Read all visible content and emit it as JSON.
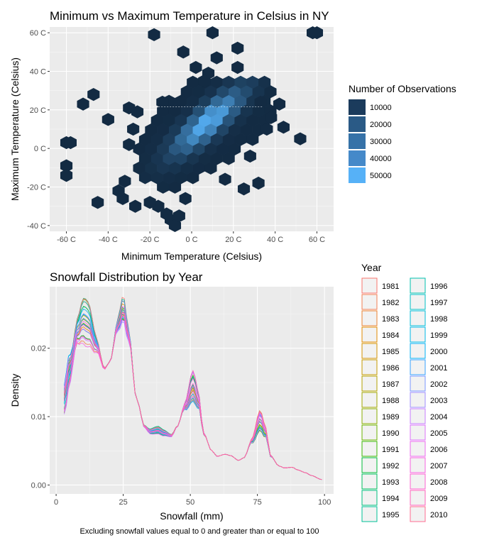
{
  "chart_data": [
    {
      "type": "heatmap",
      "subtype": "hexbin",
      "title": "Minimum vs Maximum Temperature in Celsius in NY",
      "xlabel": "Minimum Temperature (Celsius)",
      "ylabel": "Maximum Temperature (Celsius)",
      "xlim": [
        -68,
        68
      ],
      "ylim": [
        -43,
        63
      ],
      "x_ticks": [
        -60,
        -40,
        -20,
        0,
        20,
        40,
        60
      ],
      "x_tick_labels": [
        "-60 C",
        "-40 C",
        "-20 C",
        "0 C",
        "20 C",
        "40 C",
        "60 C"
      ],
      "y_ticks": [
        -40,
        -20,
        0,
        20,
        40,
        60
      ],
      "y_tick_labels": [
        "-40 C",
        "-20 C",
        "0 C",
        "20 C",
        "40 C",
        "60 C"
      ],
      "grid": true,
      "legend": {
        "title": "Number of Observations",
        "position": "right",
        "entries": [
          "10000",
          "20000",
          "30000",
          "40000",
          "50000"
        ],
        "values": [
          10000,
          20000,
          30000,
          40000,
          50000
        ],
        "colors": [
          "#1b3b5c",
          "#2a5a86",
          "#3672a8",
          "#4589c9",
          "#56b1f7"
        ]
      },
      "color_scale": {
        "low": "#132b43",
        "high": "#56b1f7"
      },
      "density_model": {
        "center": [
          8,
          14
        ],
        "major_axis_slope": 1,
        "sd_along": 14,
        "sd_across": 4.2,
        "max_count": 52000
      },
      "outlier_points": [
        [
          -60,
          3
        ],
        [
          -60,
          -9
        ],
        [
          -60,
          -14
        ],
        [
          -52,
          23
        ],
        [
          -47,
          28
        ],
        [
          -45,
          -28
        ],
        [
          -40,
          15
        ],
        [
          -33,
          -26
        ],
        [
          -28,
          10
        ],
        [
          -27,
          -30
        ],
        [
          -16,
          -30
        ],
        [
          -12,
          -34
        ],
        [
          -10,
          -37
        ],
        [
          -8,
          -40
        ],
        [
          -6,
          -35
        ],
        [
          -3,
          -26
        ],
        [
          -30,
          21
        ],
        [
          -18,
          59
        ],
        [
          10,
          60
        ],
        [
          22,
          52
        ],
        [
          22,
          42
        ],
        [
          8,
          39
        ],
        [
          6,
          35
        ],
        [
          2,
          42
        ],
        [
          12,
          47
        ],
        [
          36,
          10
        ],
        [
          42,
          23
        ],
        [
          44,
          11
        ],
        [
          60,
          60
        ],
        [
          58,
          60
        ],
        [
          -58,
          3
        ],
        [
          -4,
          50
        ],
        [
          33,
          24
        ],
        [
          38,
          16
        ],
        [
          -30,
          2
        ],
        [
          -26,
          19
        ],
        [
          28,
          -4
        ],
        [
          25,
          -21
        ],
        [
          32,
          -18
        ],
        [
          52,
          5
        ],
        [
          -35,
          -22
        ],
        [
          -32,
          -17
        ],
        [
          -20,
          -28
        ],
        [
          16,
          -16
        ],
        [
          -14,
          24
        ]
      ]
    },
    {
      "type": "line",
      "subtype": "density",
      "title": "Snowfall Distribution by Year",
      "xlabel": "Snowfall (mm)",
      "ylabel": "Density",
      "caption": "Excluding snowfall values equal to 0 and greater than or equal to 100",
      "xlim": [
        0,
        100
      ],
      "ylim": [
        0,
        0.029
      ],
      "x_ticks": [
        0,
        25,
        50,
        75,
        100
      ],
      "x_tick_labels": [
        "0",
        "25",
        "50",
        "75",
        "100"
      ],
      "y_ticks": [
        0.0,
        0.01,
        0.02
      ],
      "y_tick_labels": [
        "0.00",
        "0.01",
        "0.02"
      ],
      "grid": true,
      "legend": {
        "title": "Year",
        "position": "right",
        "columns": 2
      },
      "base_curve": {
        "x": [
          3,
          5,
          8,
          10,
          12,
          15,
          18,
          20,
          23,
          25,
          27,
          30,
          33,
          35,
          38,
          40,
          43,
          45,
          48,
          51,
          53,
          55,
          58,
          60,
          63,
          65,
          68,
          70,
          73,
          76,
          78,
          80,
          83,
          85,
          88,
          90,
          93,
          95,
          99
        ],
        "y": [
          0.0125,
          0.017,
          0.0225,
          0.024,
          0.0235,
          0.0205,
          0.017,
          0.018,
          0.0235,
          0.026,
          0.022,
          0.0125,
          0.0085,
          0.0078,
          0.008,
          0.0076,
          0.0072,
          0.0085,
          0.0115,
          0.0145,
          0.0125,
          0.0075,
          0.005,
          0.0042,
          0.0045,
          0.0043,
          0.0036,
          0.004,
          0.0065,
          0.0095,
          0.0078,
          0.0042,
          0.0028,
          0.0025,
          0.0026,
          0.0022,
          0.0018,
          0.0014,
          0.0008
        ]
      },
      "series": [
        {
          "name": "1981",
          "color": "#F8766D"
        },
        {
          "name": "1982",
          "color": "#F27D53"
        },
        {
          "name": "1983",
          "color": "#EA8331"
        },
        {
          "name": "1984",
          "color": "#E08B00"
        },
        {
          "name": "1985",
          "color": "#D39200"
        },
        {
          "name": "1986",
          "color": "#C49A00"
        },
        {
          "name": "1987",
          "color": "#B3A000"
        },
        {
          "name": "1988",
          "color": "#A0A600"
        },
        {
          "name": "1989",
          "color": "#89AC00"
        },
        {
          "name": "1990",
          "color": "#6BB100"
        },
        {
          "name": "1991",
          "color": "#39B600"
        },
        {
          "name": "1992",
          "color": "#00BA38"
        },
        {
          "name": "1993",
          "color": "#00BD5F"
        },
        {
          "name": "1994",
          "color": "#00BF7D"
        },
        {
          "name": "1995",
          "color": "#00C097"
        },
        {
          "name": "1996",
          "color": "#00C0AF"
        },
        {
          "name": "1997",
          "color": "#00BFC4"
        },
        {
          "name": "1998",
          "color": "#00BCD8"
        },
        {
          "name": "1999",
          "color": "#00B8E7"
        },
        {
          "name": "2000",
          "color": "#00B0F6"
        },
        {
          "name": "2001",
          "color": "#35A2FF"
        },
        {
          "name": "2002",
          "color": "#7997FF"
        },
        {
          "name": "2003",
          "color": "#9F8CFF"
        },
        {
          "name": "2004",
          "color": "#C77CFF"
        },
        {
          "name": "2005",
          "color": "#DC71FA"
        },
        {
          "name": "2006",
          "color": "#EC69EF"
        },
        {
          "name": "2007",
          "color": "#F763E0"
        },
        {
          "name": "2008",
          "color": "#FD61D1"
        },
        {
          "name": "2009",
          "color": "#FF62BC"
        },
        {
          "name": "2010",
          "color": "#FF6C91"
        }
      ]
    }
  ]
}
